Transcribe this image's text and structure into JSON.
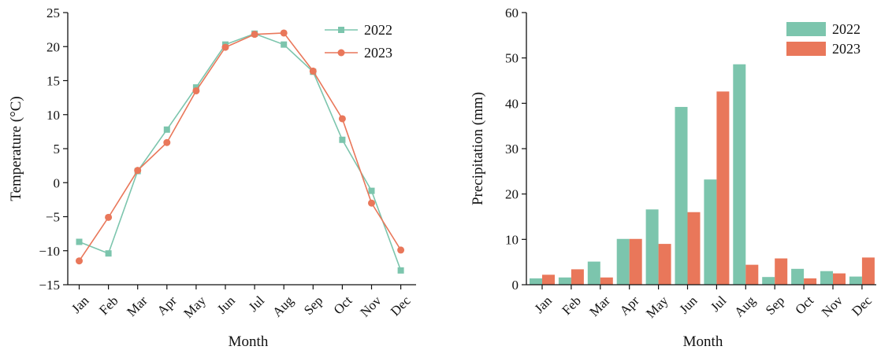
{
  "colors": {
    "s2022": "#7cc5ad",
    "s2023": "#e9775a"
  },
  "chart_data": [
    {
      "type": "line",
      "categories": [
        "Jan",
        "Feb",
        "Mar",
        "Apr",
        "May",
        "Jun",
        "Jul",
        "Aug",
        "Sep",
        "Oct",
        "Nov",
        "Dec"
      ],
      "series": [
        {
          "name": "2022",
          "values": [
            -8.7,
            -10.4,
            1.7,
            7.8,
            14.0,
            20.3,
            21.9,
            20.3,
            16.3,
            6.3,
            -1.2,
            -12.9
          ]
        },
        {
          "name": "2023",
          "values": [
            -11.5,
            -5.1,
            1.8,
            5.9,
            13.5,
            19.9,
            21.8,
            22.0,
            16.4,
            9.4,
            -3.0,
            -9.9
          ]
        }
      ],
      "xlabel": "Month",
      "ylabel": "Temperature (°C)",
      "ylim": [
        -15,
        25
      ],
      "yticks": [
        "−15",
        "−10",
        "−5",
        "0",
        "5",
        "10",
        "15",
        "20",
        "25"
      ],
      "legend": "top-right",
      "grid": false
    },
    {
      "type": "bar",
      "categories": [
        "Jan",
        "Feb",
        "Mar",
        "Apr",
        "May",
        "Jun",
        "Jul",
        "Aug",
        "Sep",
        "Oct",
        "Nov",
        "Dec"
      ],
      "series": [
        {
          "name": "2022",
          "values": [
            1.4,
            1.6,
            5.1,
            10.1,
            16.6,
            39.2,
            23.2,
            48.6,
            1.7,
            3.5,
            3.0,
            1.8
          ]
        },
        {
          "name": "2023",
          "values": [
            2.2,
            3.4,
            1.6,
            10.1,
            9.0,
            16.0,
            42.6,
            4.4,
            5.8,
            1.4,
            2.5,
            6.0
          ]
        }
      ],
      "xlabel": "Month",
      "ylabel": "Precipitation (mm)",
      "ylim": [
        0,
        60
      ],
      "yticks": [
        "0",
        "10",
        "20",
        "30",
        "40",
        "50",
        "60"
      ],
      "legend": "top-right",
      "grid": false
    }
  ]
}
